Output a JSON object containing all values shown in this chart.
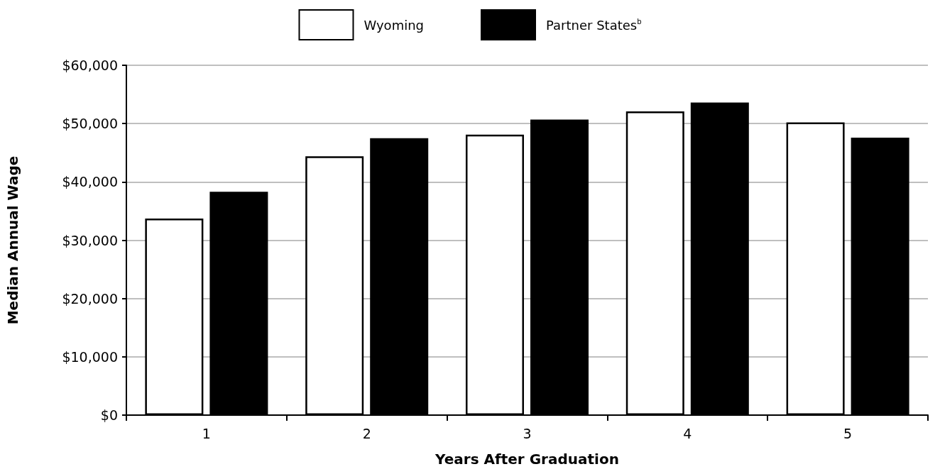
{
  "chart_data": {
    "type": "bar",
    "xlabel": "Years After Graduation",
    "ylabel": "Median Annual Wage",
    "categories": [
      "1",
      "2",
      "3",
      "4",
      "5"
    ],
    "series": [
      {
        "name": "Wyoming",
        "color": "#ffffff",
        "values": [
          33700,
          44400,
          48100,
          52100,
          50200
        ]
      },
      {
        "name": "Partner States$^{b}$",
        "color": "#000000",
        "values": [
          38300,
          47500,
          50700,
          53600,
          47600
        ]
      }
    ],
    "ylim": [
      0,
      60000
    ],
    "yticks": [
      {
        "value": 0,
        "label": "$0"
      },
      {
        "value": 10000,
        "label": "$10,000"
      },
      {
        "value": 20000,
        "label": "$20,000"
      },
      {
        "value": 30000,
        "label": "$30,000"
      },
      {
        "value": 40000,
        "label": "$40,000"
      },
      {
        "value": 50000,
        "label": "$50,000"
      },
      {
        "value": 60000,
        "label": "$60,000"
      }
    ],
    "grid": "y",
    "legend": "top"
  }
}
